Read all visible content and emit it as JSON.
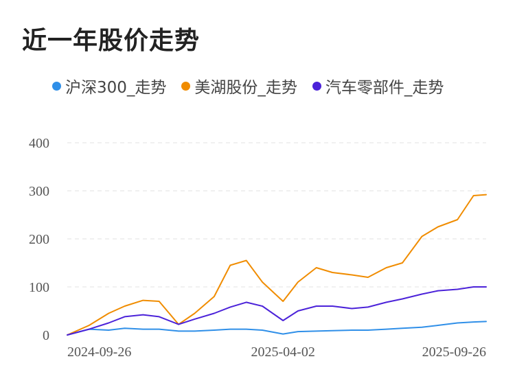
{
  "title": "近一年股价走势",
  "colors": {
    "grid": "#e6e6e6"
  },
  "chart_data": {
    "type": "line",
    "title": "近一年股价走势",
    "legend_position": "top",
    "grid": true,
    "ylim": [
      0,
      400
    ],
    "yticks": [
      "0",
      "100",
      "200",
      "300",
      "400"
    ],
    "xticks": [
      "2024-09-26",
      "2025-04-02",
      "2025-09-26"
    ],
    "xlabel": "",
    "ylabel": "",
    "x": [
      "2024-09-26",
      "2024-10-15",
      "2024-11-01",
      "2024-11-15",
      "2024-12-01",
      "2024-12-15",
      "2025-01-01",
      "2025-01-15",
      "2025-02-01",
      "2025-02-15",
      "2025-03-01",
      "2025-03-15",
      "2025-04-02",
      "2025-04-15",
      "2025-05-01",
      "2025-05-15",
      "2025-06-01",
      "2025-06-15",
      "2025-07-01",
      "2025-07-15",
      "2025-08-01",
      "2025-08-15",
      "2025-09-01",
      "2025-09-15",
      "2025-09-26"
    ],
    "series": [
      {
        "name": "沪深300_走势",
        "color": "#2f8fe8",
        "values": [
          0,
          12,
          10,
          14,
          12,
          12,
          8,
          8,
          10,
          12,
          12,
          10,
          2,
          7,
          8,
          9,
          10,
          10,
          12,
          14,
          16,
          20,
          25,
          27,
          28
        ]
      },
      {
        "name": "美湖股份_走势",
        "color": "#f08c00",
        "values": [
          0,
          20,
          45,
          60,
          72,
          70,
          22,
          45,
          80,
          145,
          155,
          110,
          70,
          110,
          140,
          130,
          125,
          120,
          140,
          150,
          205,
          225,
          240,
          290,
          292
        ]
      },
      {
        "name": "汽车零部件_走势",
        "color": "#4b22d9",
        "values": [
          0,
          12,
          25,
          38,
          42,
          38,
          22,
          33,
          45,
          58,
          68,
          60,
          30,
          50,
          60,
          60,
          55,
          58,
          68,
          75,
          85,
          92,
          95,
          100,
          100
        ]
      }
    ]
  }
}
